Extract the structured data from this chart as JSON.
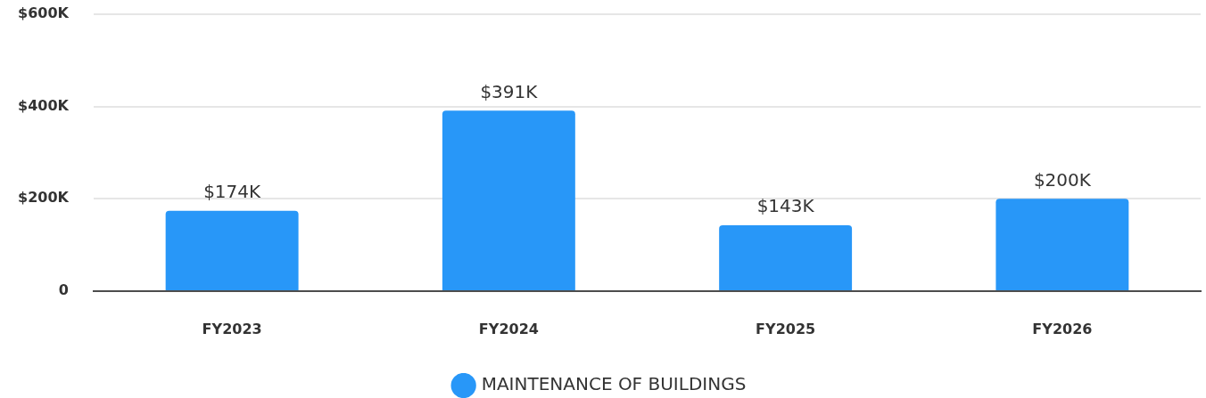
{
  "chart_data": {
    "type": "bar",
    "categories": [
      "FY2023",
      "FY2024",
      "FY2025",
      "FY2026"
    ],
    "series": [
      {
        "name": "MAINTENANCE OF BUILDINGS",
        "color": "#2897f8",
        "values": [
          174000,
          391000,
          143000,
          200000
        ],
        "value_labels": [
          "$174K",
          "$391K",
          "$143K",
          "$200K"
        ]
      }
    ],
    "ylim": [
      0,
      600000
    ],
    "yticks": [
      0,
      {
        "value": 200000,
        "label": "$200K"
      },
      {
        "value": 400000,
        "label": "$400K"
      },
      {
        "value": 600000,
        "label": "$600K"
      }
    ],
    "grid": "y",
    "legend": "bottom"
  }
}
